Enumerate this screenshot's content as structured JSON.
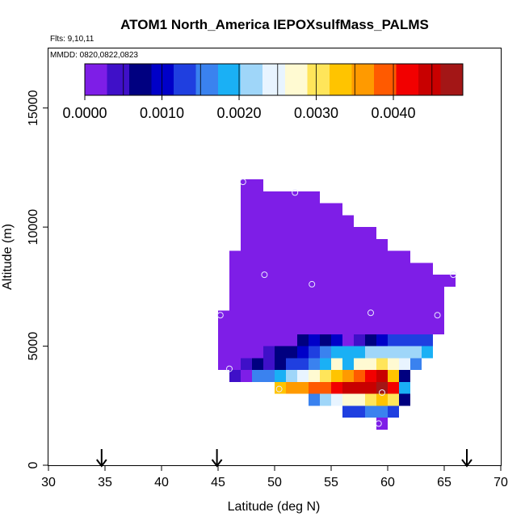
{
  "chart_data": {
    "type": "heatmap",
    "title": "ATOM1 North_America IEPOXsulfMass_PALMS",
    "flights_label": "Flts: 9,10,11",
    "mmdd_label": "MMDD: 0820,0822,0823",
    "xlabel": "Latitude (deg N)",
    "ylabel": "Altitude (m)",
    "xlim": [
      30,
      70
    ],
    "ylim": [
      0,
      17500
    ],
    "x_ticks": [
      30,
      35,
      40,
      45,
      50,
      55,
      60,
      65,
      70
    ],
    "y_ticks": [
      0,
      5000,
      10000,
      15000
    ],
    "grid": false,
    "colorbar": {
      "position": "top",
      "min": 0,
      "max": 0.0049,
      "tick_values": [
        0,
        0.001,
        0.002,
        0.003,
        0.004
      ],
      "tick_labels": [
        "0.0000",
        "0.0010",
        "0.0020",
        "0.0030",
        "0.0040"
      ],
      "colors": [
        "#7e1ee7",
        "#3f10c8",
        "#000080",
        "#0000c8",
        "#1f3fe0",
        "#3a82ef",
        "#1ab0f5",
        "#9fd6f9",
        "#e8f4ff",
        "#fffad2",
        "#ffe55a",
        "#ffc400",
        "#ff9a00",
        "#ff5a00",
        "#f20000",
        "#c80000",
        "#a31616"
      ]
    },
    "cell_size": {
      "lat": 1,
      "alt": 500
    },
    "cells": [
      [
        47,
        11750,
        0
      ],
      [
        47,
        11250,
        0
      ],
      [
        48,
        11750,
        0
      ],
      [
        48,
        11250,
        0
      ],
      [
        49,
        11250,
        0
      ],
      [
        50,
        11250,
        0
      ],
      [
        51,
        11250,
        0
      ],
      [
        52,
        11250,
        0
      ],
      [
        53,
        11250,
        0
      ],
      [
        55,
        10750,
        0
      ],
      [
        46,
        8750,
        0
      ],
      [
        57,
        9750,
        0
      ],
      [
        59,
        9250,
        0
      ],
      [
        61,
        8750,
        0
      ],
      [
        63,
        8250,
        0
      ],
      [
        65,
        7750,
        0
      ],
      [
        51,
        5250,
        0.00018
      ],
      [
        52,
        5250,
        0.0006
      ],
      [
        53,
        5250,
        0.0011
      ],
      [
        54,
        5250,
        0.0006
      ],
      [
        55,
        5250,
        0.0009
      ],
      [
        56,
        5250,
        0.0002
      ],
      [
        57,
        5250,
        0.0004
      ],
      [
        58,
        5250,
        0.0008
      ],
      [
        59,
        5250,
        0.0011
      ],
      [
        60,
        5250,
        0.0012
      ],
      [
        61,
        5250,
        0.0012
      ],
      [
        62,
        5250,
        0.0012
      ],
      [
        63,
        5250,
        0.0014
      ],
      [
        49,
        4750,
        0.0003
      ],
      [
        50,
        4750,
        0.00058
      ],
      [
        51,
        4750,
        0.0006
      ],
      [
        52,
        4750,
        0.0009
      ],
      [
        53,
        4750,
        0.0013
      ],
      [
        54,
        4750,
        0.0015
      ],
      [
        55,
        4750,
        0.0019
      ],
      [
        56,
        4750,
        0.0018
      ],
      [
        57,
        4750,
        0.0018
      ],
      [
        58,
        4750,
        0.0021
      ],
      [
        59,
        4750,
        0.0021
      ],
      [
        60,
        4750,
        0.0023
      ],
      [
        61,
        4750,
        0.0023
      ],
      [
        62,
        4750,
        0.0022
      ],
      [
        63,
        4750,
        0.0019
      ],
      [
        47,
        4250,
        0.0005
      ],
      [
        48,
        4250,
        0.0006
      ],
      [
        49,
        4250,
        0.0005
      ],
      [
        50,
        4250,
        0.0007
      ],
      [
        51,
        4250,
        0.0012
      ],
      [
        52,
        4250,
        0.0014
      ],
      [
        53,
        4250,
        0.0017
      ],
      [
        54,
        4250,
        0.002
      ],
      [
        55,
        4250,
        0.0026
      ],
      [
        56,
        4250,
        0.0018
      ],
      [
        57,
        4250,
        0.0026
      ],
      [
        58,
        4250,
        0.0028
      ],
      [
        59,
        4250,
        0.003
      ],
      [
        60,
        4250,
        0.0028
      ],
      [
        61,
        4250,
        0.0024
      ],
      [
        62,
        4250,
        0.0015
      ],
      [
        46,
        3750,
        0.0003
      ],
      [
        47,
        3750,
        0.0001
      ],
      [
        48,
        3750,
        0.0016
      ],
      [
        49,
        3750,
        0.0017
      ],
      [
        50,
        3750,
        0.0019
      ],
      [
        51,
        3750,
        0.0021
      ],
      [
        52,
        3750,
        0.0024
      ],
      [
        53,
        3750,
        0.0027
      ],
      [
        54,
        3750,
        0.003
      ],
      [
        55,
        3750,
        0.0033
      ],
      [
        56,
        3750,
        0.0036
      ],
      [
        57,
        3750,
        0.0038
      ],
      [
        58,
        3750,
        0.0041
      ],
      [
        59,
        3750,
        0.0044
      ],
      [
        60,
        3750,
        0.0032
      ],
      [
        61,
        3750,
        0.0007
      ],
      [
        50,
        3250,
        0.0034
      ],
      [
        51,
        3250,
        0.0035
      ],
      [
        52,
        3250,
        0.0037
      ],
      [
        53,
        3250,
        0.0038
      ],
      [
        54,
        3250,
        0.004
      ],
      [
        55,
        3250,
        0.0042
      ],
      [
        56,
        3250,
        0.0044
      ],
      [
        57,
        3250,
        0.0044
      ],
      [
        58,
        3250,
        0.0046
      ],
      [
        59,
        3250,
        0.0048
      ],
      [
        60,
        3250,
        0.0041
      ],
      [
        61,
        3250,
        0.002
      ],
      [
        53,
        2750,
        0.0016
      ],
      [
        54,
        2750,
        0.0021
      ],
      [
        55,
        2750,
        0.0024
      ],
      [
        56,
        2750,
        0.0026
      ],
      [
        57,
        2750,
        0.0028
      ],
      [
        58,
        2750,
        0.0031
      ],
      [
        59,
        2750,
        0.0034
      ],
      [
        60,
        2750,
        0.0031
      ],
      [
        61,
        2750,
        0.0007
      ],
      [
        56,
        2250,
        0.0013
      ],
      [
        57,
        2250,
        0.0014
      ],
      [
        58,
        2250,
        0.0015
      ],
      [
        59,
        2250,
        0.0016
      ],
      [
        60,
        2250,
        0.0012
      ],
      [
        59,
        1750,
        0
      ]
    ],
    "flight_track_points": [
      [
        47.2,
        11900
      ],
      [
        51.8,
        11450
      ],
      [
        49.1,
        8000
      ],
      [
        53.3,
        7600
      ],
      [
        58.5,
        6400
      ],
      [
        45.2,
        6300
      ],
      [
        64.4,
        6300
      ],
      [
        65.8,
        8000
      ],
      [
        46.0,
        4050
      ],
      [
        50.4,
        3200
      ],
      [
        59.5,
        3050
      ],
      [
        59.2,
        1750
      ]
    ],
    "arrow_latitudes": [
      34.7,
      44.9,
      67.0
    ]
  }
}
